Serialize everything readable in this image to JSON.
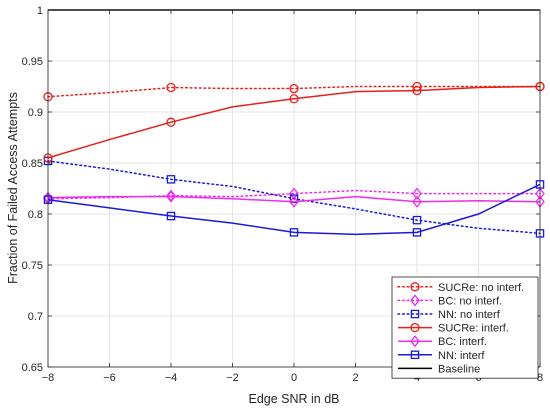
{
  "chart_data": {
    "type": "line",
    "xlabel": "Edge SNR in dB",
    "ylabel": "Fraction of Failed Access Attempts",
    "xlim": [
      -8,
      8
    ],
    "ylim": [
      0.65,
      1.0
    ],
    "xticks": [
      -8,
      -6,
      -4,
      -2,
      0,
      2,
      4,
      6,
      8
    ],
    "yticks": [
      0.65,
      0.7,
      0.75,
      0.8,
      0.85,
      0.9,
      0.95,
      1
    ],
    "ytick_labels": [
      "0.65",
      "0.7",
      "0.75",
      "0.8",
      "0.85",
      "0.9",
      "0.95",
      "1"
    ],
    "grid": true,
    "legend_position": "bottom-right",
    "series": [
      {
        "name": "SUCRe: no interf.",
        "color": "#e8201a",
        "dash": "dotted",
        "marker": "circle",
        "x": [
          -8,
          -6,
          -4,
          -2,
          0,
          2,
          4,
          6,
          8
        ],
        "y": [
          0.915,
          0.919,
          0.924,
          0.923,
          0.923,
          0.925,
          0.925,
          0.925,
          0.925
        ],
        "marker_x": [
          -8,
          -4,
          0,
          4,
          8
        ]
      },
      {
        "name": "BC: no interf.",
        "color": "#ee2cee",
        "dash": "dotted",
        "marker": "diamond",
        "x": [
          -8,
          -6,
          -4,
          -2,
          0,
          2,
          4,
          6,
          8
        ],
        "y": [
          0.815,
          0.816,
          0.818,
          0.817,
          0.82,
          0.823,
          0.82,
          0.82,
          0.82
        ],
        "marker_x": [
          -8,
          -4,
          0,
          4,
          8
        ]
      },
      {
        "name": "NN: no interf",
        "color": "#1a1adc",
        "dash": "dotted",
        "marker": "square",
        "x": [
          -8,
          -6,
          -4,
          -2,
          0,
          2,
          4,
          6,
          8
        ],
        "y": [
          0.852,
          0.844,
          0.834,
          0.827,
          0.815,
          0.805,
          0.794,
          0.786,
          0.781
        ],
        "marker_x": [
          -8,
          -4,
          0,
          4,
          8
        ]
      },
      {
        "name": "SUCRe: interf.",
        "color": "#e8201a",
        "dash": "solid",
        "marker": "circle",
        "x": [
          -8,
          -6,
          -4,
          -2,
          0,
          2,
          4,
          6,
          8
        ],
        "y": [
          0.855,
          0.873,
          0.89,
          0.905,
          0.913,
          0.92,
          0.921,
          0.924,
          0.925
        ],
        "marker_x": [
          -8,
          -4,
          0,
          4,
          8
        ]
      },
      {
        "name": "BC: interf.",
        "color": "#ee2cee",
        "dash": "solid",
        "marker": "diamond",
        "x": [
          -8,
          -6,
          -4,
          -2,
          0,
          2,
          4,
          6,
          8
        ],
        "y": [
          0.816,
          0.817,
          0.817,
          0.815,
          0.812,
          0.817,
          0.812,
          0.813,
          0.812
        ],
        "marker_x": [
          -8,
          -4,
          0,
          4,
          8
        ]
      },
      {
        "name": "NN: interf",
        "color": "#1a1adc",
        "dash": "solid",
        "marker": "square",
        "x": [
          -8,
          -6,
          -4,
          -2,
          0,
          2,
          4,
          6,
          8
        ],
        "y": [
          0.814,
          0.806,
          0.798,
          0.791,
          0.782,
          0.78,
          0.782,
          0.8,
          0.829
        ],
        "marker_x": [
          -8,
          -4,
          0,
          4,
          8
        ]
      },
      {
        "name": "Baseline",
        "color": "#000000",
        "dash": "solid",
        "marker": "none",
        "x": [
          -8,
          8
        ],
        "y": [
          1.0,
          1.0
        ],
        "marker_x": []
      }
    ]
  }
}
